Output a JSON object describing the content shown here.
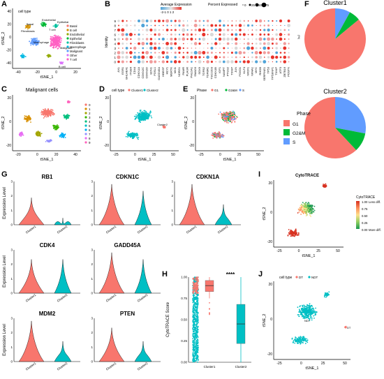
{
  "panels": {
    "A": {
      "label": "A",
      "legend_title": "cell type",
      "legend_items": [
        "Basal",
        "B cell",
        "Endothelial",
        "Epithelial",
        "Fibroblasts",
        "Macrophage",
        "Malignant",
        "Other",
        "T cell"
      ],
      "xlabel": "tSNE_1",
      "ylabel": "tSNE_2",
      "xticks": [
        "-40",
        "-20",
        "0",
        "20"
      ],
      "yticks": [
        "-40",
        "-20",
        "0",
        "20",
        "40"
      ],
      "cluster_labels": [
        "Fibroblasts",
        "Basal",
        "Endothelial",
        "T cell",
        "Epithelial",
        "Macrophage",
        "Malignant",
        "B cell"
      ]
    },
    "B": {
      "label": "B",
      "ylabel": "Identity",
      "scale_label": "Average Expression",
      "scale_ticks": "-2-1 0 1 2",
      "size_label": "Percent Expressed",
      "size_ticks": [
        "0",
        "25",
        "50",
        "75"
      ],
      "rows": [
        "9",
        "8",
        "7",
        "6",
        "5",
        "4",
        "3",
        "2",
        "1",
        "0"
      ],
      "genes": [
        "AXL",
        "EGR1",
        "BHLHE41",
        "ITGB4",
        "CD44",
        "CDKN1A",
        "CDKN2C",
        "CDKN2D",
        "EDN1",
        "FOSL1",
        "GADD45A",
        "HBEGF",
        "HEY1",
        "MERTK",
        "MXI1",
        "NDRG1",
        "PAWR",
        "PLAUR",
        "PHLDA1",
        "SMAD3",
        "SOX9",
        "TGFB2",
        "TGFBR1",
        "TSC22D3",
        "CDKN1B",
        "IGF1",
        "NAMPT",
        "PTGS2",
        "TXNIP",
        "JUN",
        "FOXO1",
        "KLF4",
        "NR2F1",
        "NR4A1",
        "MYC",
        "RHOB",
        "SERPINE1",
        "TP53",
        "TP53INP1",
        "TXNIP",
        "ATF3",
        "ZBTB16",
        "POSTN"
      ]
    },
    "C": {
      "label": "C",
      "title": "Malignant cells",
      "xlabel": "tSNE_1",
      "ylabel": "tSNE_2",
      "xticks": [
        "-20",
        "0",
        "20",
        "40"
      ],
      "yticks": [
        "-20",
        "0",
        "20"
      ],
      "legend_items": [
        "0",
        "1",
        "2",
        "3",
        "4",
        "5",
        "6",
        "7",
        "8",
        "9"
      ]
    },
    "D": {
      "label": "D",
      "legend_title": "cell type",
      "legend_items": [
        "Cluster1",
        "Cluster2"
      ],
      "xlabel": "tSNE_1",
      "ylabel": "tSNE_2",
      "xticks": [
        "-25",
        "0",
        "25",
        "50"
      ],
      "yticks": [
        "-20",
        "0",
        "20"
      ]
    },
    "E": {
      "label": "E",
      "legend_title": "Phase",
      "legend_items": [
        "G1",
        "G2&M",
        "S"
      ],
      "xlabel": "tSNE_1",
      "ylabel": "tSNE_2",
      "xticks": [
        "-25",
        "0",
        "25",
        "50"
      ],
      "yticks": [
        "-20",
        "0",
        "20"
      ]
    },
    "F": {
      "label": "F",
      "phase_title": "Phase",
      "phase_items": [
        "G1",
        "G2&M",
        "S"
      ]
    },
    "G": {
      "label": "G",
      "ylabel": "Expression Level",
      "cats": [
        "Cluster1",
        "Cluster2"
      ]
    },
    "H": {
      "label": "H",
      "ylabel": "CytoTRACE Score",
      "yticks": [
        "0.00",
        "0.25",
        "0.50",
        "0.75",
        "1.00"
      ],
      "cats": [
        "Cluster1",
        "Cluster2"
      ],
      "signif": "****"
    },
    "I": {
      "label": "I",
      "title": "CytoTRACE",
      "xlabel": "tSNE_1",
      "ylabel": "tSNE_2",
      "xticks": [
        "-25",
        "0",
        "25",
        "50"
      ],
      "yticks": [
        "-20",
        "0",
        "20"
      ],
      "legend_title": "CytoTRACE",
      "legend_ticks": [
        "1.00",
        "0.75",
        "0.50",
        "0.25",
        "0.00"
      ],
      "less_diff": "Less diff.",
      "more_diff": "More diff."
    },
    "J": {
      "label": "J",
      "legend_title": "cell type",
      "legend_items": [
        "DT",
        "NDT"
      ],
      "xlabel": "tSNE_1",
      "ylabel": "tSNE_2",
      "xticks": [
        "-25",
        "0",
        "25",
        "50"
      ],
      "yticks": [
        "-20",
        "0",
        "20"
      ],
      "cluster_labels": [
        "NDT",
        "DT"
      ]
    }
  },
  "colors": {
    "cluster1": "#f8766d",
    "cluster2": "#00bfc4",
    "g1": "#f8766d",
    "g2m": "#00ba38",
    "s": "#619cff"
  },
  "chart_data": [
    {
      "type": "pie",
      "title": "Cluster1",
      "categories": [
        "G1",
        "G2&M",
        "S"
      ],
      "values": [
        0.86,
        0.06,
        0.08
      ]
    },
    {
      "type": "pie",
      "title": "Cluster2",
      "categories": [
        "G1",
        "G2&M",
        "S"
      ],
      "values": [
        0.62,
        0.1,
        0.28
      ]
    },
    {
      "type": "violin",
      "title": "RB1",
      "categories": [
        "Cluster1",
        "Cluster2"
      ],
      "ymax": [
        2.0,
        0.5
      ]
    },
    {
      "type": "violin",
      "title": "CDKN1C",
      "categories": [
        "Cluster1",
        "Cluster2"
      ],
      "ymax": [
        3.0,
        2.5
      ]
    },
    {
      "type": "violin",
      "title": "CDKN1A",
      "categories": [
        "Cluster1",
        "Cluster2"
      ],
      "ymax": [
        3.0,
        1.5
      ]
    },
    {
      "type": "violin",
      "title": "CDK4",
      "categories": [
        "Cluster1",
        "Cluster2"
      ],
      "ymax": [
        2.5,
        2.5
      ]
    },
    {
      "type": "violin",
      "title": "GADD45A",
      "categories": [
        "Cluster1",
        "Cluster2"
      ],
      "ymax": [
        3.0,
        2.5
      ]
    },
    {
      "type": "violin",
      "title": "MDM2",
      "categories": [
        "Cluster1",
        "Cluster2"
      ],
      "ymax": [
        3.0,
        1.5
      ]
    },
    {
      "type": "violin",
      "title": "PTEN",
      "categories": [
        "Cluster1",
        "Cluster2"
      ],
      "ymax": [
        2.5,
        1.5
      ]
    },
    {
      "type": "box",
      "title": "",
      "ylabel": "CytoTRACE Score",
      "categories": [
        "Cluster1",
        "Cluster2"
      ],
      "ylim": [
        0,
        1
      ],
      "median": [
        0.9,
        0.45
      ],
      "q1": [
        0.83,
        0.22
      ],
      "q3": [
        0.96,
        0.68
      ],
      "whisker_low": [
        0.75,
        0.0
      ],
      "whisker_high": [
        1.0,
        1.0
      ]
    }
  ]
}
